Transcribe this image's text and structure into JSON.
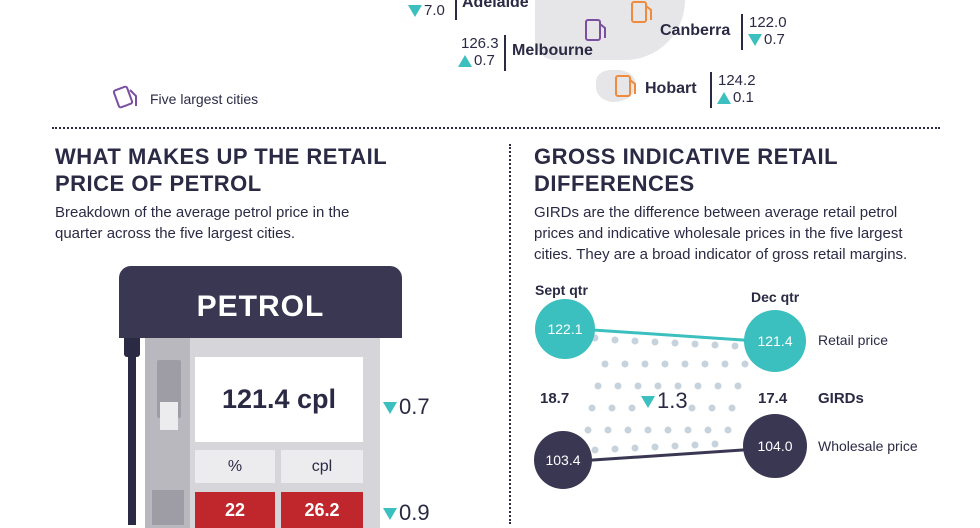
{
  "map": {
    "adelaide": {
      "name": "Adelaide",
      "change": "7.0",
      "dir": "down"
    },
    "melbourne": {
      "name": "Melbourne",
      "price": "126.3",
      "change": "0.7",
      "dir": "up"
    },
    "canberra": {
      "name": "Canberra",
      "price": "122.0",
      "change": "0.7",
      "dir": "down"
    },
    "hobart": {
      "name": "Hobart",
      "price": "124.2",
      "change": "0.1",
      "dir": "up"
    },
    "legend": "Five largest cities"
  },
  "left": {
    "title_line1": "WHAT MAKES UP THE RETAIL",
    "title_line2": "PRICE OF PETROL",
    "desc_line1": "Breakdown of the average petrol price in the",
    "desc_line2": "quarter across the five largest cities.",
    "pump": {
      "label": "PETROL",
      "price": "121.4 cpl",
      "price_change": "0.7",
      "col_pct": "%",
      "col_cpl": "cpl",
      "row_pct": "22",
      "row_cpl": "26.2",
      "row_change": "0.9"
    }
  },
  "right": {
    "title_line1": "GROSS INDICATIVE RETAIL",
    "title_line2": "DIFFERENCES",
    "desc_line1": "GIRDs are the difference between average retail petrol",
    "desc_line2": "prices and indicative wholesale prices in the five largest",
    "desc_line3": "cities. They are a broad indicator of gross retail margins.",
    "sept_label": "Sept qtr",
    "dec_label": "Dec qtr",
    "sept_retail": "122.1",
    "dec_retail": "121.4",
    "retail_label": "Retail price",
    "sept_gird": "18.7",
    "gird_change": "1.3",
    "dec_gird": "17.4",
    "gird_label": "GIRDs",
    "sept_wholesale": "103.4",
    "dec_wholesale": "104.0",
    "wholesale_label": "Wholesale price"
  },
  "colors": {
    "navy": "#2b2a44",
    "teal": "#3bbfbf",
    "red": "#c0272d",
    "orange": "#f08a3c",
    "purple": "#7a4fa0"
  }
}
